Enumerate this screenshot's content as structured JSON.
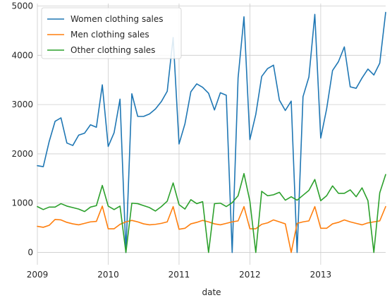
{
  "chart_data": {
    "type": "line",
    "title": "",
    "xlabel": "date",
    "ylabel": "",
    "x_start": "2009-01",
    "x_end": "2013-12",
    "xlim": [
      "2009-01",
      "2013-12"
    ],
    "ylim": [
      -250,
      5050
    ],
    "x_ticks": [
      {
        "label": "2009",
        "date": "2009-01"
      },
      {
        "label": "2010",
        "date": "2010-01"
      },
      {
        "label": "2011",
        "date": "2011-01"
      },
      {
        "label": "2012",
        "date": "2012-01"
      },
      {
        "label": "2013",
        "date": "2013-01"
      }
    ],
    "y_ticks": [
      0,
      1000,
      2000,
      3000,
      4000,
      5000
    ],
    "grid": true,
    "legend_position": "top-left",
    "series": [
      {
        "name": "Women clothing sales",
        "color": "#1f77b4",
        "values": [
          1760,
          1740,
          2250,
          2660,
          2730,
          2220,
          2170,
          2380,
          2420,
          2590,
          2540,
          3400,
          2150,
          2430,
          3110,
          0,
          3220,
          2760,
          2760,
          2810,
          2910,
          3060,
          3270,
          4360,
          2200,
          2610,
          3260,
          3420,
          3350,
          3230,
          2890,
          3240,
          3190,
          0,
          3540,
          4780,
          2290,
          2800,
          3570,
          3730,
          3800,
          3090,
          2880,
          3070,
          0,
          3160,
          3560,
          4830,
          2320,
          2910,
          3690,
          3870,
          4170,
          3360,
          3330,
          3540,
          3720,
          3600,
          3840,
          4870
        ]
      },
      {
        "name": "Men clothing sales",
        "color": "#ff7f0e",
        "values": [
          530,
          510,
          550,
          670,
          660,
          610,
          580,
          560,
          590,
          620,
          630,
          940,
          480,
          480,
          570,
          620,
          650,
          620,
          580,
          560,
          570,
          590,
          620,
          930,
          470,
          490,
          580,
          610,
          650,
          620,
          580,
          560,
          590,
          620,
          640,
          930,
          480,
          480,
          570,
          600,
          660,
          620,
          580,
          0,
          590,
          620,
          640,
          930,
          490,
          490,
          580,
          610,
          660,
          620,
          590,
          560,
          600,
          620,
          640,
          930
        ]
      },
      {
        "name": "Other clothing sales",
        "color": "#2ca02c",
        "values": [
          930,
          870,
          920,
          920,
          990,
          940,
          910,
          880,
          830,
          920,
          950,
          1360,
          940,
          870,
          940,
          0,
          1000,
          990,
          950,
          910,
          840,
          930,
          1040,
          1410,
          970,
          880,
          1070,
          990,
          1030,
          0,
          990,
          1000,
          930,
          1010,
          1150,
          1600,
          1040,
          0,
          1240,
          1150,
          1170,
          1220,
          1060,
          1130,
          1060,
          1160,
          1260,
          1480,
          1050,
          1150,
          1350,
          1200,
          1200,
          1270,
          1130,
          1310,
          1050,
          0,
          1210,
          1580
        ]
      }
    ]
  }
}
